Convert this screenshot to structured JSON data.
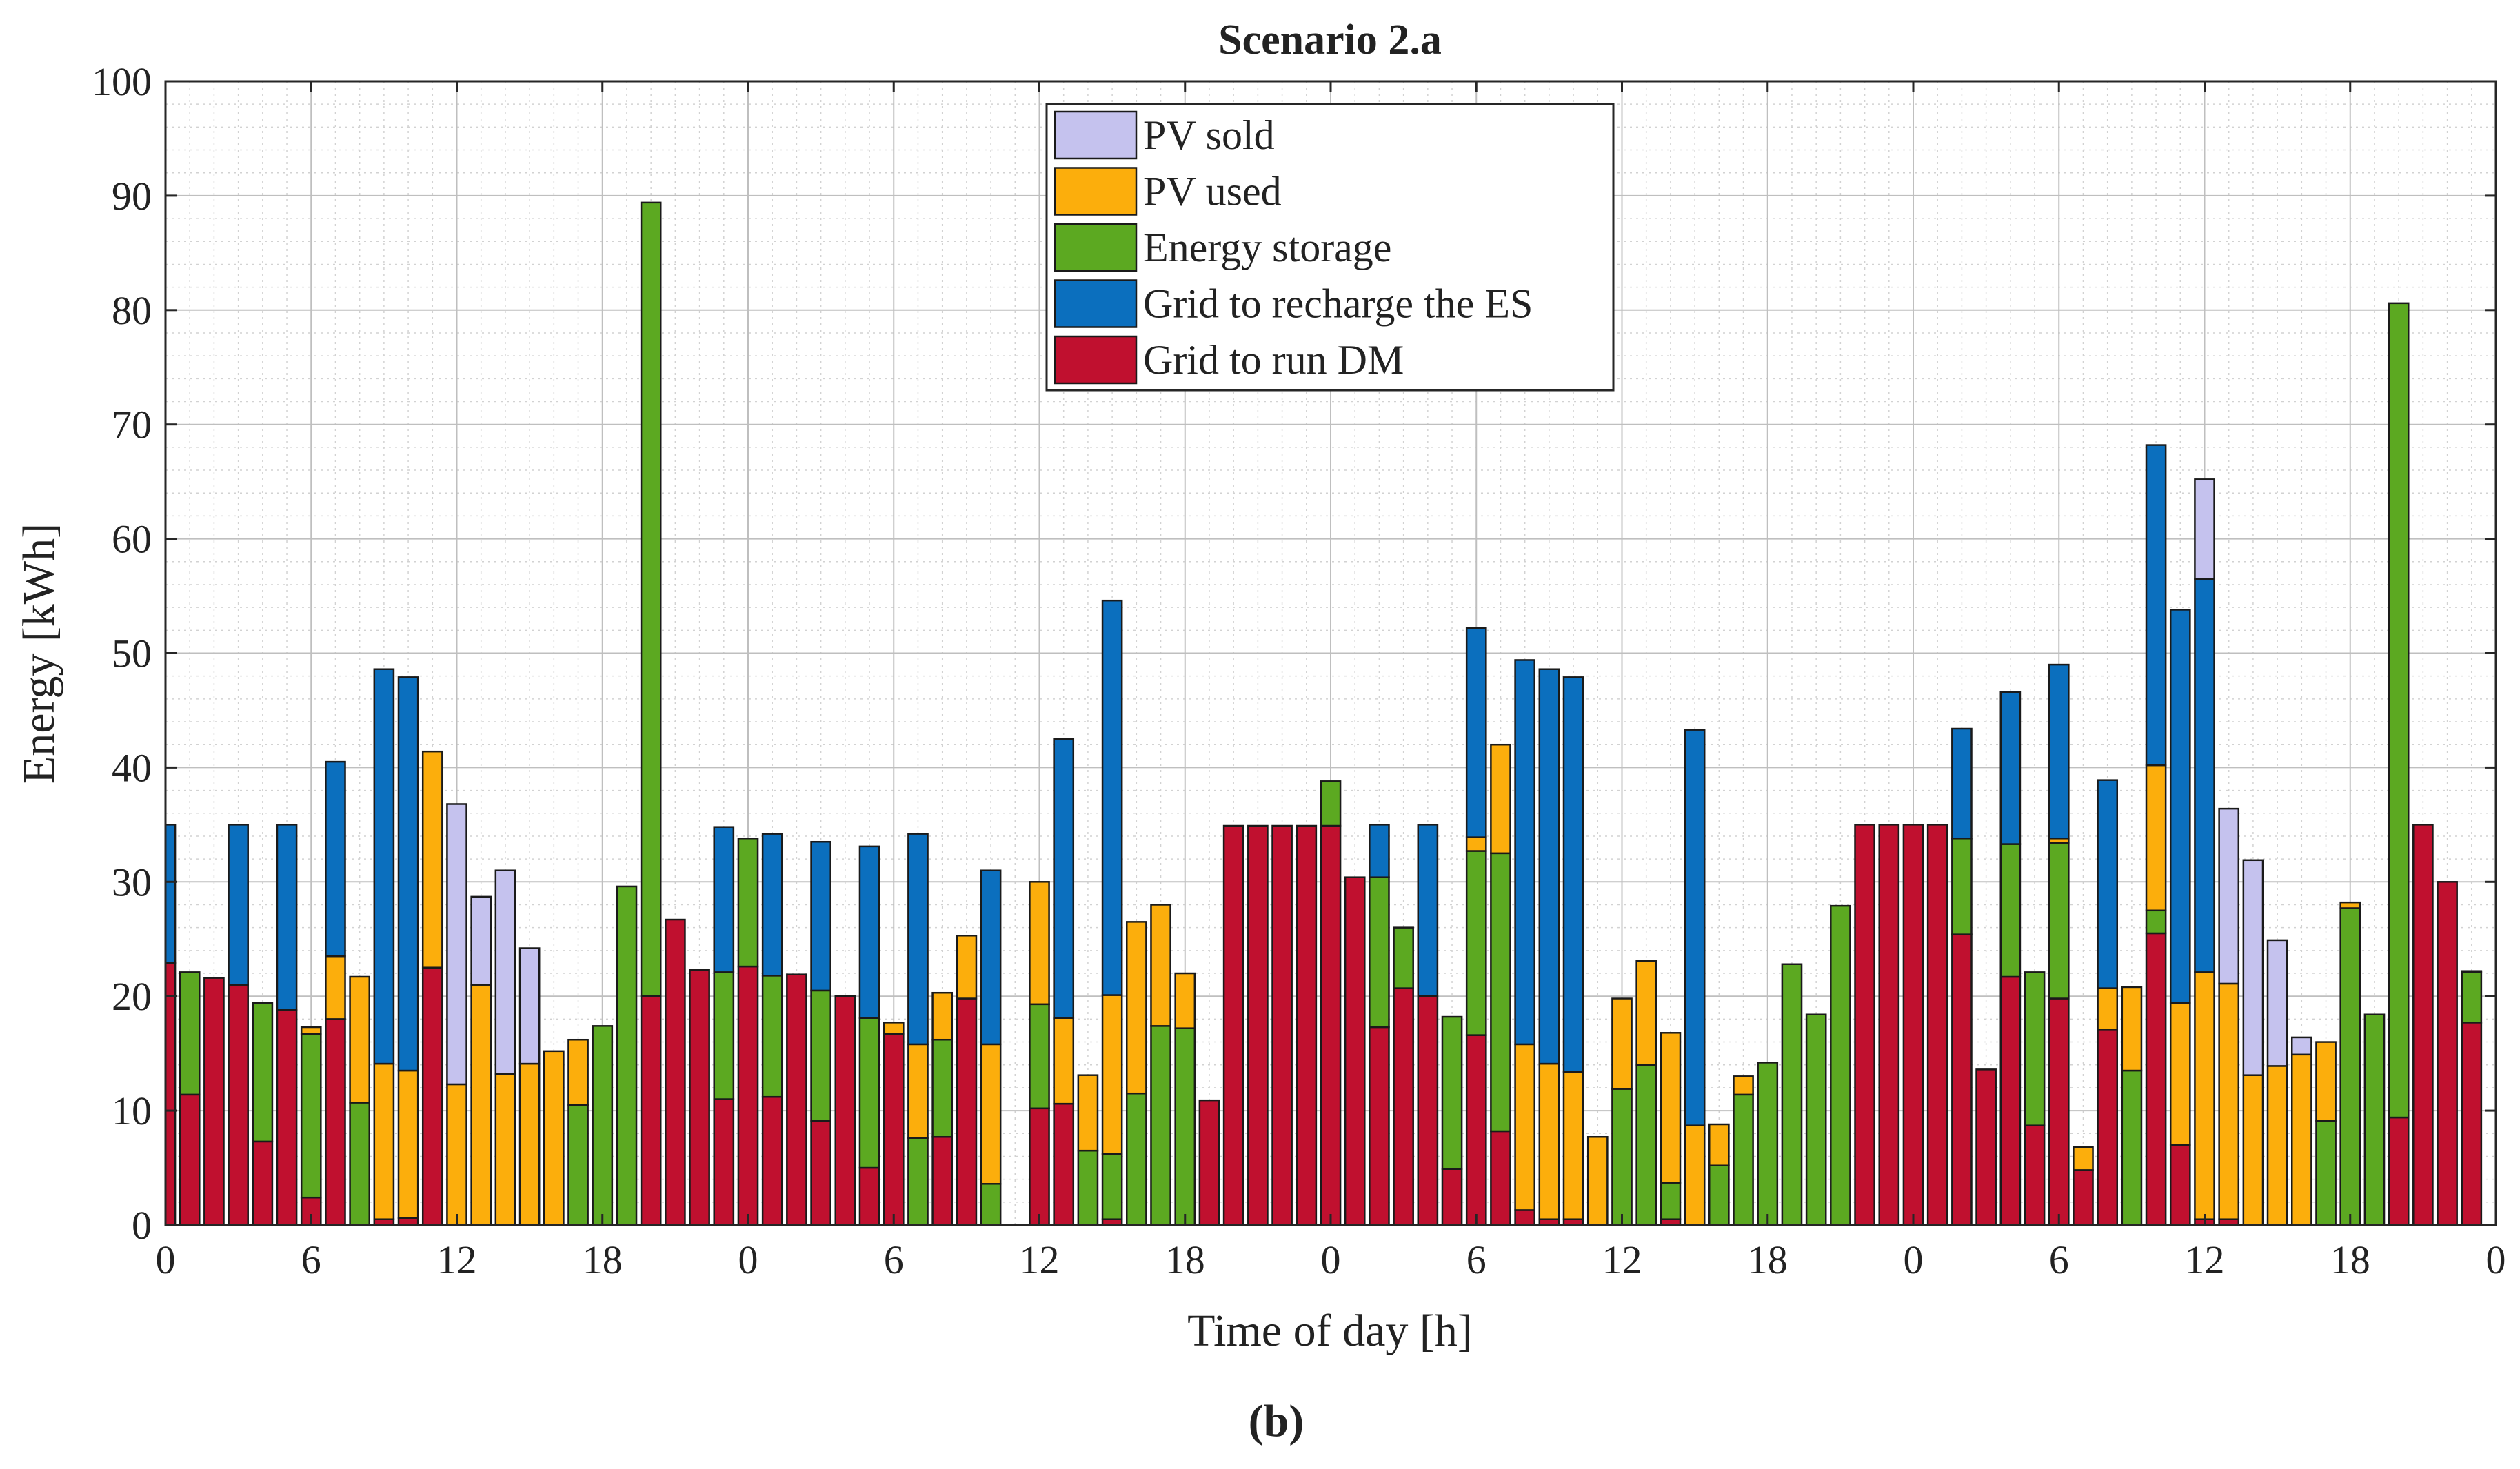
{
  "chart_data": {
    "type": "bar",
    "stacked": true,
    "title": "Scenario 2.a",
    "xlabel": "Time of day [h]",
    "ylabel": "Energy [kWh]",
    "ylim": [
      0,
      100
    ],
    "yticks": [
      "0",
      "10",
      "20",
      "30",
      "40",
      "50",
      "60",
      "70",
      "80",
      "90",
      "100"
    ],
    "xticks": [
      "0",
      "6",
      "12",
      "18",
      "0",
      "6",
      "12",
      "18",
      "0",
      "6",
      "12",
      "18",
      "0",
      "6",
      "12",
      "18",
      "0"
    ],
    "hours_per_day": 24,
    "days": 4,
    "grid": true,
    "legend_position": "top-center",
    "stack_order": [
      "dm",
      "es",
      "pv_used",
      "grid_es",
      "pv_sold"
    ],
    "series": [
      {
        "key": "pv_sold",
        "name": "PV sold",
        "color": "#c5c2ee",
        "values": [
          0,
          0,
          0,
          0,
          0,
          0,
          0,
          0,
          0,
          0,
          0,
          0,
          24.5,
          7.7,
          17.8,
          10.1,
          0,
          0,
          0,
          0,
          0,
          0,
          0,
          0,
          0,
          0,
          0,
          0,
          0,
          0,
          0,
          0,
          0,
          0,
          0,
          0,
          0,
          0,
          0,
          0,
          0,
          0,
          0,
          0,
          0,
          0,
          0,
          0,
          0,
          0,
          0,
          0,
          0,
          0,
          0,
          0,
          0,
          0,
          0,
          0,
          0,
          0,
          0,
          0,
          0,
          0,
          0,
          0,
          0,
          0,
          0,
          0,
          0,
          0,
          0,
          0,
          0,
          0,
          0,
          0,
          0,
          0,
          0,
          0,
          8.7,
          15.3,
          18.8,
          11.0,
          1.5,
          0,
          0,
          0,
          0,
          0,
          0,
          0
        ]
      },
      {
        "key": "pv_used",
        "name": "PV used",
        "color": "#fcae0c",
        "values": [
          0,
          0,
          0,
          0,
          0,
          0,
          0.6,
          5.5,
          11.0,
          13.6,
          12.9,
          18.9,
          12.3,
          21.0,
          13.2,
          14.1,
          15.2,
          5.7,
          0,
          0,
          0,
          0,
          0,
          0,
          0,
          0,
          0,
          0,
          0,
          0,
          1.0,
          8.2,
          4.1,
          5.5,
          12.2,
          0,
          10.7,
          7.5,
          6.6,
          13.9,
          15.0,
          10.6,
          4.8,
          0,
          0,
          0,
          0,
          0,
          0,
          0,
          0,
          0,
          0,
          0,
          1.2,
          9.5,
          14.5,
          13.6,
          12.9,
          7.7,
          7.9,
          9.1,
          13.1,
          8.7,
          3.6,
          1.6,
          0,
          0,
          0,
          0,
          0,
          0,
          0,
          0,
          0,
          0,
          0,
          0,
          0.4,
          2.0,
          3.6,
          7.3,
          12.7,
          12.4,
          21.6,
          20.6,
          13.1,
          13.9,
          14.9,
          6.9,
          0.5,
          0,
          0,
          0,
          0,
          0
        ]
      },
      {
        "key": "es",
        "name": "Energy storage",
        "color": "#5ca921",
        "values": [
          0,
          10.7,
          0,
          0,
          12.1,
          0,
          14.3,
          0,
          10.7,
          0,
          0,
          0,
          0,
          0,
          0,
          0,
          0,
          10.5,
          17.4,
          29.6,
          69.4,
          0,
          0,
          11.1,
          11.2,
          10.6,
          0,
          11.4,
          0,
          13.1,
          0,
          7.6,
          8.5,
          0,
          3.6,
          0,
          9.1,
          0,
          6.5,
          5.7,
          11.5,
          17.4,
          17.2,
          0,
          0,
          0,
          0,
          0,
          3.9,
          0,
          13.1,
          5.3,
          0,
          13.3,
          16.1,
          24.3,
          0,
          0,
          0,
          0,
          11.9,
          14.0,
          3.2,
          0,
          5.2,
          11.4,
          14.2,
          22.8,
          18.4,
          27.9,
          0,
          0,
          0,
          0,
          8.4,
          0,
          11.6,
          13.4,
          13.6,
          0,
          0,
          13.5,
          2.0,
          0,
          0,
          0,
          0,
          0,
          0,
          9.1,
          27.7,
          18.4,
          71.2,
          0,
          0,
          4.4
        ]
      },
      {
        "key": "grid_es",
        "name": "Grid to recharge the ES",
        "color": "#0b6fbe",
        "values": [
          12.1,
          0,
          0,
          14.0,
          0,
          16.2,
          0,
          17.0,
          0,
          34.5,
          34.4,
          0,
          0,
          0,
          0,
          0,
          0,
          0,
          0,
          0,
          0,
          0,
          0,
          12.7,
          0,
          12.4,
          0,
          13.0,
          0,
          15.0,
          0,
          18.4,
          0,
          0,
          15.2,
          0,
          0,
          24.4,
          0,
          34.5,
          0,
          0,
          0,
          0,
          0,
          0,
          0,
          0,
          0,
          0,
          4.6,
          0,
          15.0,
          0,
          18.3,
          0,
          33.6,
          34.5,
          34.5,
          0,
          0,
          0,
          0,
          34.6,
          0,
          0,
          0,
          0,
          0,
          0,
          0,
          0,
          0,
          0,
          9.6,
          0,
          13.3,
          0,
          15.2,
          0,
          18.2,
          0,
          28.0,
          34.4,
          34.4,
          0,
          0,
          0,
          0,
          0,
          0,
          0,
          0,
          0,
          0,
          0.1
        ]
      },
      {
        "key": "dm",
        "name": "Grid to run DM",
        "color": "#c0102f",
        "values": [
          22.9,
          11.4,
          21.6,
          21.0,
          7.3,
          18.8,
          2.4,
          18.0,
          0,
          0.5,
          0.6,
          22.5,
          0,
          0,
          0,
          0,
          0,
          0,
          0,
          0,
          20.0,
          26.7,
          22.3,
          11.0,
          22.6,
          11.2,
          21.9,
          9.1,
          20.0,
          5.0,
          16.7,
          0,
          7.7,
          19.8,
          0,
          0,
          10.2,
          10.6,
          0,
          0.5,
          0,
          0,
          0,
          10.9,
          34.9,
          34.9,
          34.9,
          34.9,
          34.9,
          30.4,
          17.3,
          20.7,
          20.0,
          4.9,
          16.6,
          8.2,
          1.3,
          0.5,
          0.5,
          0,
          0,
          0,
          0.5,
          0,
          0,
          0,
          0,
          0,
          0,
          0,
          35.0,
          35.0,
          35.0,
          35.0,
          25.4,
          13.6,
          21.7,
          8.7,
          19.8,
          4.8,
          17.1,
          0,
          25.5,
          7.0,
          0.5,
          0.5,
          0,
          0,
          0,
          0,
          0,
          0,
          9.4,
          35.0,
          30.0,
          17.7
        ]
      }
    ]
  },
  "caption": "(b)"
}
